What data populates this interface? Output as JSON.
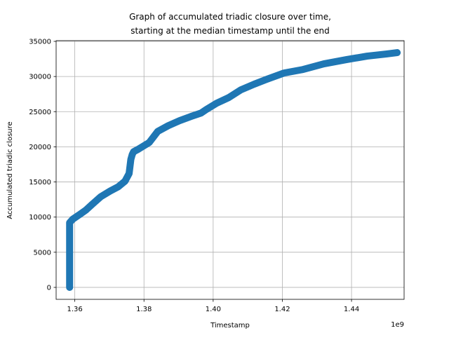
{
  "chart_data": {
    "type": "line",
    "title_lines": [
      "Graph of accumulated triadic closure over time,",
      "starting at the median timestamp until the end"
    ],
    "xlabel": "Timestamp",
    "ylabel": "Accumulated triadic closure",
    "x_offset_label": "1e9",
    "x_scale": 1000000000.0,
    "xlim": [
      1.3546,
      1.4552
    ],
    "ylim": [
      -1700,
      35100
    ],
    "x_ticks": [
      1.36,
      1.38,
      1.4,
      1.42,
      1.44
    ],
    "x_tick_labels": [
      "1.36",
      "1.38",
      "1.40",
      "1.42",
      "1.44"
    ],
    "y_ticks": [
      0,
      5000,
      10000,
      15000,
      20000,
      25000,
      30000,
      35000
    ],
    "y_tick_labels": [
      "0",
      "5000",
      "10000",
      "15000",
      "20000",
      "25000",
      "30000",
      "35000"
    ],
    "grid": true,
    "marker": "circle",
    "series_color": "#1f77b4",
    "grid_color": "#b0b0b0",
    "series": [
      {
        "values_x": [
          1.3585,
          1.3585,
          1.3594,
          1.3612,
          1.3632,
          1.3652,
          1.3675,
          1.3702,
          1.3725,
          1.3745,
          1.3757,
          1.3762,
          1.3766,
          1.377,
          1.3785,
          1.3815,
          1.384,
          1.387,
          1.3902,
          1.3935,
          1.3965,
          1.398,
          1.401,
          1.4045,
          1.408,
          1.4118,
          1.416,
          1.4205,
          1.426,
          1.432,
          1.4385,
          1.4445,
          1.45,
          1.4532
        ],
        "values_y": [
          0,
          9200,
          9700,
          10300,
          11000,
          11900,
          12900,
          13700,
          14300,
          15100,
          16200,
          18200,
          18900,
          19300,
          19700,
          20600,
          22200,
          23000,
          23700,
          24300,
          24800,
          25300,
          26200,
          27000,
          28100,
          28900,
          29700,
          30500,
          31000,
          31800,
          32400,
          32900,
          33200,
          33400
        ]
      }
    ]
  }
}
